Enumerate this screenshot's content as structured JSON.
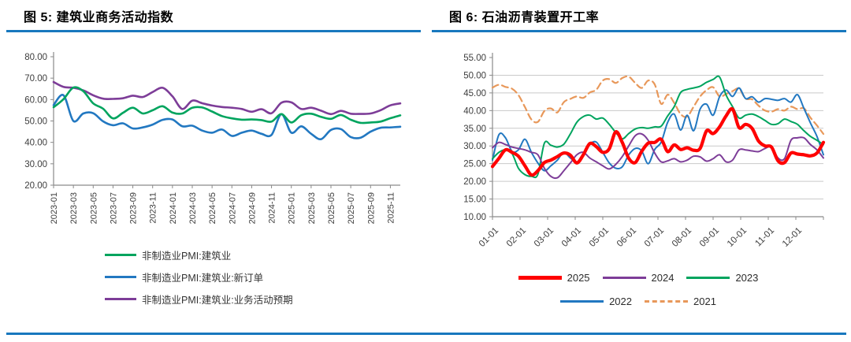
{
  "figures": {
    "fig5_title": "图 5:  建筑业商务活动指数",
    "fig6_title": "图 6:  石油沥青装置开工率"
  },
  "chart_data": [
    {
      "type": "line",
      "title": "图 5:  建筑业商务活动指数",
      "xlabel": "",
      "ylabel": "",
      "ylim": [
        20,
        80
      ],
      "y_ticks": [
        20,
        30,
        40,
        50,
        60,
        70,
        80
      ],
      "grid": false,
      "legend_position": "bottom-left",
      "x": [
        "2023-01",
        "2023-02",
        "2023-03",
        "2023-04",
        "2023-05",
        "2023-06",
        "2023-07",
        "2023-08",
        "2023-09",
        "2023-10",
        "2023-11",
        "2023-12",
        "2024-01",
        "2024-02",
        "2024-03",
        "2024-04",
        "2024-05",
        "2024-06",
        "2024-07",
        "2024-08",
        "2024-09",
        "2024-10",
        "2024-11",
        "2024-12",
        "2025-01",
        "2025-02",
        "2025-03",
        "2025-04",
        "2025-05",
        "2025-06",
        "2025-07",
        "2025-08",
        "2025-09",
        "2025-10",
        "2025-11",
        "2025-12"
      ],
      "x_tick_labels": [
        "2023-01",
        "2023-03",
        "2023-05",
        "2023-07",
        "2023-09",
        "2023-11",
        "2024-01",
        "2024-03",
        "2024-05",
        "2024-07",
        "2024-09",
        "2024-11",
        "2025-01",
        "2025-03",
        "2025-05",
        "2025-07",
        "2025-09",
        "2025-11"
      ],
      "x_tick_every": 2,
      "series": [
        {
          "name": "非制造业PMI:建筑业",
          "color": "#00A45E",
          "width": 2.6,
          "values": [
            56.4,
            60.2,
            65.6,
            63.9,
            58.2,
            55.7,
            51.2,
            53.8,
            56.2,
            53.5,
            55.0,
            56.9,
            53.9,
            53.5,
            56.2,
            56.3,
            54.4,
            52.3,
            51.2,
            50.6,
            50.7,
            50.4,
            49.7,
            53.2,
            49.3,
            52.7,
            53.4,
            51.9,
            51.0,
            52.8,
            50.6,
            49.1,
            49.3,
            49.7,
            51.3,
            52.6
          ]
        },
        {
          "name": "非制造业PMI:建筑业:新订单",
          "color": "#2278C1",
          "width": 2.6,
          "values": [
            57.4,
            62.0,
            50.0,
            53.5,
            53.6,
            49.8,
            48.0,
            48.9,
            46.5,
            47.0,
            48.3,
            50.5,
            50.7,
            47.5,
            47.8,
            45.5,
            44.5,
            46.0,
            43.0,
            44.5,
            45.5,
            44.0,
            43.5,
            53.2,
            44.5,
            47.5,
            44.0,
            41.5,
            45.8,
            46.2,
            42.5,
            42.2,
            45.0,
            46.8,
            47.0,
            47.3
          ]
        },
        {
          "name": "非制造业PMI:建筑业:业务活动预期",
          "color": "#7D3D98",
          "width": 2.6,
          "values": [
            68.2,
            65.9,
            65.5,
            64.3,
            62.0,
            60.4,
            60.3,
            60.6,
            61.8,
            61.2,
            63.5,
            65.5,
            61.5,
            55.6,
            59.5,
            58.3,
            57.2,
            56.5,
            56.2,
            55.6,
            54.3,
            55.5,
            53.6,
            58.5,
            58.7,
            55.6,
            56.2,
            54.8,
            53.2,
            54.7,
            53.4,
            53.3,
            53.5,
            55.0,
            57.3,
            58.2
          ]
        }
      ]
    },
    {
      "type": "line",
      "title": "图 6:  石油沥青装置开工率",
      "xlabel": "",
      "ylabel": "",
      "ylim": [
        10,
        55
      ],
      "y_ticks": [
        10,
        15,
        20,
        25,
        30,
        35,
        40,
        45,
        50,
        55
      ],
      "grid": true,
      "legend_position": "bottom-center",
      "x_unit": "week-of-year (52 points Jan–Dec)",
      "x_tick_labels": [
        "01-01",
        "02-01",
        "03-01",
        "04-01",
        "05-01",
        "06-01",
        "07-01",
        "08-01",
        "09-01",
        "10-01",
        "11-01",
        "12-01"
      ],
      "series": [
        {
          "name": "2025",
          "color": "#FF0000",
          "width": 4.2,
          "values": [
            24.2,
            26.5,
            28.9,
            28.2,
            27.1,
            24.4,
            21.8,
            23.0,
            25.3,
            26.0,
            27.0,
            28.0,
            27.4,
            25.2,
            27.5,
            30.7,
            29.8,
            28.2,
            29.2,
            34.0,
            31.0,
            26.5,
            25.3,
            28.5,
            30.8,
            31.0,
            31.9,
            28.4,
            30.3,
            29.0,
            29.5,
            28.8,
            29.3,
            34.3,
            33.5,
            35.4,
            38.5,
            40.4,
            35.2,
            36.1,
            35.0,
            31.4,
            30.0,
            29.7,
            25.8,
            25.3,
            28.0,
            27.7,
            27.5,
            27.2,
            28.0,
            31.0
          ]
        },
        {
          "name": "2024",
          "color": "#7D3D98",
          "width": 2,
          "values": [
            29.5,
            31.0,
            30.4,
            29.7,
            29.3,
            28.9,
            28.2,
            27.5,
            23.7,
            21.4,
            21.0,
            23.0,
            25.2,
            27.5,
            28.2,
            26.6,
            25.5,
            24.4,
            23.5,
            24.8,
            27.0,
            30.0,
            32.9,
            33.4,
            31.6,
            28.0,
            25.5,
            25.8,
            26.4,
            25.5,
            26.0,
            27.1,
            26.9,
            25.7,
            26.4,
            27.5,
            25.5,
            26.0,
            28.9,
            28.9,
            28.6,
            28.4,
            29.3,
            29.7,
            26.6,
            26.4,
            31.6,
            32.3,
            32.3,
            30.4,
            28.9,
            26.6
          ]
        },
        {
          "name": "2023",
          "color": "#00A45E",
          "width": 2,
          "values": [
            26.4,
            28.2,
            28.9,
            27.9,
            23.7,
            21.9,
            21.4,
            22.0,
            30.8,
            30.2,
            29.7,
            30.5,
            33.4,
            36.7,
            38.3,
            38.7,
            37.6,
            37.9,
            36.1,
            33.8,
            32.0,
            33.5,
            34.8,
            35.2,
            35.0,
            35.4,
            35.6,
            38.5,
            41.1,
            45.1,
            46.0,
            46.4,
            46.9,
            48.0,
            48.8,
            49.5,
            44.4,
            41.1,
            37.9,
            38.7,
            39.0,
            38.3,
            37.2,
            36.1,
            36.3,
            37.6,
            36.9,
            36.1,
            34.3,
            32.7,
            31.6,
            30.4
          ]
        },
        {
          "name": "2022",
          "color": "#2278C1",
          "width": 2,
          "values": [
            26.0,
            33.2,
            32.3,
            28.5,
            28.9,
            31.9,
            28.2,
            25.2,
            23.0,
            24.4,
            26.0,
            28.2,
            26.6,
            25.5,
            27.1,
            30.4,
            31.1,
            28.2,
            25.2,
            23.7,
            24.1,
            27.5,
            29.3,
            28.6,
            25.0,
            29.0,
            31.1,
            36.7,
            39.0,
            34.5,
            38.7,
            34.3,
            40.4,
            41.8,
            38.7,
            43.9,
            45.8,
            44.0,
            46.4,
            43.4,
            43.9,
            42.4,
            43.4,
            43.2,
            42.9,
            43.4,
            42.4,
            44.5,
            40.6,
            36.5,
            32.7,
            27.5
          ]
        },
        {
          "name": "2021",
          "color": "#E8985A",
          "width": 2.2,
          "dash": true,
          "values": [
            46.5,
            47.3,
            46.7,
            46.2,
            44.4,
            41.0,
            37.5,
            36.8,
            39.9,
            40.6,
            39.5,
            42.4,
            43.3,
            44.0,
            43.6,
            45.1,
            45.9,
            48.5,
            48.9,
            47.8,
            49.2,
            49.6,
            47.8,
            46.4,
            48.5,
            47.4,
            41.9,
            44.5,
            42.2,
            39.0,
            38.3,
            41.1,
            44.0,
            45.8,
            46.6,
            44.0,
            44.7,
            45.5,
            46.2,
            43.4,
            43.2,
            41.4,
            40.0,
            39.7,
            40.4,
            40.0,
            41.1,
            40.4,
            40.6,
            38.0,
            35.8,
            33.4
          ]
        }
      ]
    }
  ],
  "colors": {
    "title_rule_blue": "#1878BE",
    "axis_gray": "#8a8a8a",
    "grid_gray": "#c9c9c9",
    "tick_text": "#3d3d3d"
  }
}
